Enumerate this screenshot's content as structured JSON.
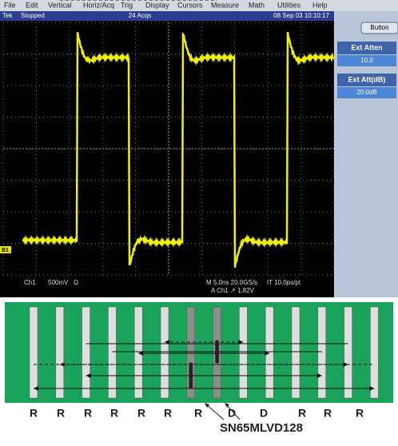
{
  "menu": [
    "File",
    "Edit",
    "Vertical",
    "Horiz/Acq",
    "Trig",
    "Display",
    "Cursors",
    "Measure",
    "Math",
    "Utilities",
    "Help"
  ],
  "status": {
    "brand": "Tek",
    "state": "Stopped",
    "acqs": "24 Acqs",
    "datetime": "08 Sep 03 10:10:17"
  },
  "side_panel": {
    "button": "Button",
    "items": [
      {
        "label": "Ext Atten",
        "value": "10.0"
      },
      {
        "label": "Ext Att(dB)",
        "value": "20.0dB"
      }
    ]
  },
  "marker": "B1",
  "readouts": {
    "channel": "Ch1",
    "scale": "500mV",
    "impedance": "Ω",
    "timebase": "M 5.0ns 20.0GS/s",
    "interp": "IT 10.0ps/pt",
    "trigger": "A Ch1 ↗ 1.82V"
  },
  "diagram": {
    "labels": [
      "R",
      "R",
      "R",
      "R",
      "R",
      "R",
      "R",
      "D",
      "D",
      "R",
      "R",
      "R"
    ],
    "part": "SN65MLVD128"
  }
}
